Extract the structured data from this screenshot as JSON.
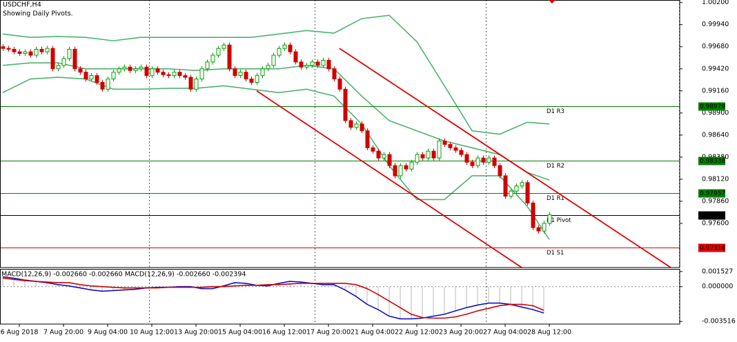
{
  "chart_data": {
    "type": "candlestick",
    "title": "USDCHF,H4",
    "subtitle": "Showing Daily Pivots.",
    "xlim": [
      -0.5,
      122.625
    ],
    "ylim": [
      0.9708,
      1.0023
    ],
    "yticks": [
      {
        "value": 1.002,
        "label": "1.00200"
      },
      {
        "value": 0.9994,
        "label": "0.99940"
      },
      {
        "value": 0.9968,
        "label": "0.99680"
      },
      {
        "value": 0.9942,
        "label": "0.99420"
      },
      {
        "value": 0.9916,
        "label": "0.99160"
      },
      {
        "value": 0.989,
        "label": "0.98900"
      },
      {
        "value": 0.9864,
        "label": "0.98640"
      },
      {
        "value": 0.9838,
        "label": "0.98380"
      },
      {
        "value": 0.9812,
        "label": "0.98120"
      },
      {
        "value": 0.9786,
        "label": "0.97860"
      },
      {
        "value": 0.976,
        "label": "0.97600"
      }
    ],
    "xticks": [
      {
        "value": 3,
        "label": "6 Aug 2018"
      },
      {
        "value": 11,
        "label": "7 Aug 20:00"
      },
      {
        "value": 19,
        "label": "9 Aug 04:00"
      },
      {
        "value": 27,
        "label": "10 Aug 12:00"
      },
      {
        "value": 35,
        "label": "13 Aug 20:00"
      },
      {
        "value": 43,
        "label": "15 Aug 04:00"
      },
      {
        "value": 51,
        "label": "16 Aug 12:00"
      },
      {
        "value": 59,
        "label": "17 Aug 20:00"
      },
      {
        "value": 67,
        "label": "21 Aug 04:00"
      },
      {
        "value": 75,
        "label": "22 Aug 12:00"
      },
      {
        "value": 83,
        "label": "23 Aug 20:00"
      },
      {
        "value": 91,
        "label": "27 Aug 04:00"
      },
      {
        "value": 99,
        "label": "28 Aug 12:00"
      }
    ],
    "xgrid": [
      26.5,
      56.5,
      87.5,
      122.5
    ],
    "up_color": "#00a000",
    "down_color": "#d00000",
    "open": [
      0.9968,
      0.9966,
      0.9965,
      0.9962,
      0.996,
      0.9962,
      0.9958,
      0.9965,
      0.9962,
      0.9966,
      0.9942,
      0.9946,
      0.9954,
      0.9965,
      0.9942,
      0.9938,
      0.993,
      0.9934,
      0.9926,
      0.9918,
      0.993,
      0.9938,
      0.9942,
      0.9944,
      0.994,
      0.9942,
      0.9944,
      0.9934,
      0.9942,
      0.9938,
      0.9935,
      0.9934,
      0.9938,
      0.9934,
      0.9932,
      0.9918,
      0.993,
      0.9942,
      0.995,
      0.9958,
      0.9966,
      0.997,
      0.9942,
      0.9934,
      0.9938,
      0.993,
      0.9926,
      0.9934,
      0.9942,
      0.9946,
      0.9958,
      0.9966,
      0.997,
      0.9962,
      0.995,
      0.9944,
      0.9946,
      0.995,
      0.9946,
      0.9952,
      0.9942,
      0.993,
      0.9918,
      0.9881,
      0.9873,
      0.9877,
      0.9869,
      0.9849,
      0.9845,
      0.9837,
      0.9841,
      0.9828,
      0.9816,
      0.9828,
      0.9824,
      0.9832,
      0.9841,
      0.9837,
      0.9845,
      0.9837,
      0.9857,
      0.9853,
      0.9849,
      0.9846,
      0.9841,
      0.9832,
      0.9828,
      0.9837,
      0.9832,
      0.9837,
      0.9828,
      0.9816,
      0.9792,
      0.9798,
      0.9804,
      0.9808,
      0.9784,
      0.9755,
      0.9751,
      0.976
    ],
    "high": [
      0.9971,
      0.9969,
      0.9968,
      0.9965,
      0.9965,
      0.9965,
      0.9968,
      0.9968,
      0.9969,
      0.9969,
      0.9949,
      0.9957,
      0.9968,
      0.9968,
      0.9945,
      0.9941,
      0.9937,
      0.9937,
      0.9929,
      0.9933,
      0.9941,
      0.9945,
      0.9947,
      0.9947,
      0.9945,
      0.9947,
      0.9947,
      0.9945,
      0.9945,
      0.9941,
      0.9938,
      0.9941,
      0.9941,
      0.9937,
      0.9935,
      0.9933,
      0.9945,
      0.9953,
      0.9961,
      0.9969,
      0.9973,
      0.9973,
      0.9945,
      0.9941,
      0.9941,
      0.9933,
      0.9937,
      0.9945,
      0.9949,
      0.9961,
      0.9969,
      0.9973,
      0.9973,
      0.9965,
      0.9953,
      0.9949,
      0.9953,
      0.9953,
      0.9955,
      0.9955,
      0.9945,
      0.9933,
      0.9921,
      0.9884,
      0.988,
      0.988,
      0.9872,
      0.9852,
      0.9848,
      0.9844,
      0.9844,
      0.9831,
      0.9831,
      0.9831,
      0.9835,
      0.9844,
      0.9844,
      0.9848,
      0.9848,
      0.986,
      0.986,
      0.9856,
      0.9852,
      0.9849,
      0.9844,
      0.9835,
      0.984,
      0.984,
      0.984,
      0.984,
      0.9831,
      0.9819,
      0.9801,
      0.9807,
      0.9811,
      0.9811,
      0.9787,
      0.9758,
      0.9763,
      0.9773
    ],
    "low": [
      0.9963,
      0.9962,
      0.9959,
      0.9957,
      0.9957,
      0.9955,
      0.9955,
      0.9959,
      0.9959,
      0.9939,
      0.9939,
      0.9943,
      0.9951,
      0.9939,
      0.9935,
      0.9927,
      0.9927,
      0.9923,
      0.9915,
      0.9915,
      0.9927,
      0.9935,
      0.9939,
      0.9937,
      0.9937,
      0.9939,
      0.9931,
      0.9931,
      0.9935,
      0.9932,
      0.9931,
      0.9931,
      0.9931,
      0.9929,
      0.9915,
      0.9915,
      0.9927,
      0.9939,
      0.9947,
      0.9955,
      0.9963,
      0.9939,
      0.9931,
      0.9931,
      0.9927,
      0.9923,
      0.9923,
      0.9931,
      0.9939,
      0.9943,
      0.9955,
      0.9963,
      0.9959,
      0.9947,
      0.9941,
      0.9941,
      0.9943,
      0.9943,
      0.9943,
      0.9939,
      0.9927,
      0.9915,
      0.9878,
      0.987,
      0.987,
      0.9866,
      0.9846,
      0.9842,
      0.9834,
      0.9834,
      0.9825,
      0.9813,
      0.9813,
      0.9821,
      0.9821,
      0.9829,
      0.9834,
      0.9834,
      0.9834,
      0.9834,
      0.985,
      0.9846,
      0.9843,
      0.9838,
      0.9829,
      0.9825,
      0.9825,
      0.9829,
      0.9829,
      0.9825,
      0.9813,
      0.9789,
      0.9789,
      0.9795,
      0.9801,
      0.9781,
      0.9752,
      0.9748,
      0.9748,
      0.9757
    ],
    "close": [
      0.9966,
      0.9965,
      0.9962,
      0.996,
      0.9962,
      0.9958,
      0.9965,
      0.9962,
      0.9966,
      0.9942,
      0.9946,
      0.9954,
      0.9965,
      0.9942,
      0.9938,
      0.993,
      0.9934,
      0.9926,
      0.9918,
      0.993,
      0.9938,
      0.9942,
      0.9944,
      0.994,
      0.9942,
      0.9944,
      0.9934,
      0.9942,
      0.9938,
      0.9935,
      0.9934,
      0.9938,
      0.9934,
      0.9932,
      0.9918,
      0.993,
      0.9942,
      0.995,
      0.9958,
      0.9966,
      0.997,
      0.9942,
      0.9934,
      0.9938,
      0.993,
      0.9926,
      0.9934,
      0.9942,
      0.9946,
      0.9958,
      0.9966,
      0.997,
      0.9962,
      0.995,
      0.9944,
      0.9946,
      0.995,
      0.9946,
      0.9952,
      0.9942,
      0.993,
      0.9918,
      0.9881,
      0.9873,
      0.9877,
      0.9869,
      0.9849,
      0.9845,
      0.9837,
      0.9841,
      0.9828,
      0.9816,
      0.9828,
      0.9824,
      0.9832,
      0.9841,
      0.9837,
      0.9845,
      0.9837,
      0.9857,
      0.9853,
      0.9849,
      0.9846,
      0.9841,
      0.9832,
      0.9828,
      0.9837,
      0.9832,
      0.9837,
      0.9828,
      0.9816,
      0.9792,
      0.9798,
      0.9804,
      0.9808,
      0.9784,
      0.9755,
      0.9751,
      0.976,
      0.977
    ],
    "bands": {
      "color": "#4db36f",
      "x": [
        0,
        5,
        10,
        15,
        20,
        25,
        30,
        35,
        40,
        45,
        50,
        55,
        60,
        65,
        70,
        75,
        80,
        85,
        90,
        95,
        99
      ],
      "upper": [
        0.9983,
        0.9979,
        0.998,
        0.9979,
        0.9975,
        0.9979,
        0.9979,
        0.9979,
        0.9979,
        0.9979,
        0.9983,
        0.9987,
        0.9984,
        1.0001,
        1.0005,
        0.9974,
        0.9922,
        0.9869,
        0.9865,
        0.9879,
        0.9877
      ],
      "middle": [
        0.9946,
        0.9949,
        0.9949,
        0.9942,
        0.9942,
        0.9942,
        0.9942,
        0.994,
        0.9942,
        0.9942,
        0.9942,
        0.9946,
        0.9942,
        0.991,
        0.9881,
        0.9869,
        0.9857,
        0.9849,
        0.9841,
        0.982,
        0.9811
      ],
      "lower": [
        0.9914,
        0.993,
        0.9932,
        0.993,
        0.9918,
        0.9918,
        0.9919,
        0.9919,
        0.9922,
        0.9918,
        0.9914,
        0.9918,
        0.991,
        0.9877,
        0.9828,
        0.9788,
        0.9788,
        0.9816,
        0.9816,
        0.978,
        0.9741
      ]
    },
    "channel": {
      "color": "#e00000",
      "lines": [
        {
          "x": [
            61,
            121
          ],
          "values": [
            0.9966,
            0.9708
          ]
        },
        {
          "x": [
            46,
            94
          ],
          "values": [
            0.9916,
            0.9708
          ]
        }
      ]
    },
    "pivots": [
      {
        "label": "D1 R3",
        "value": 0.98979,
        "color": "#008000"
      },
      {
        "label": "D1 R2",
        "value": 0.98338,
        "color": "#008000"
      },
      {
        "label": "D1 R1",
        "value": 0.97957,
        "color": "#008000"
      },
      {
        "label": "D1 Pivot",
        "value": 0.97697,
        "color": "#000000"
      },
      {
        "label": "D1 S1",
        "value": 0.97316,
        "color": "#e00000"
      }
    ],
    "macd": {
      "label": "MACD(12,26,9) -0.002660 -0.002660 MACD(12,26,9) -0.002660 -0.002394",
      "ylim": [
        -0.00378,
        0.00179
      ],
      "yticks": [
        0.001527,
        {
          "value": 0,
          "label": "0.000000"
        },
        -0.003516
      ],
      "main_color": "#1010c8",
      "signal_color": "#d00000",
      "histogram_color": "#b8b8b8",
      "x": [
        0,
        2,
        4,
        6,
        8,
        10,
        12,
        14,
        16,
        18,
        20,
        22,
        24,
        26,
        28,
        30,
        32,
        34,
        36,
        38,
        40,
        42,
        44,
        46,
        48,
        50,
        52,
        54,
        56,
        58,
        60,
        62,
        64,
        66,
        68,
        70,
        72,
        74,
        76,
        78,
        80,
        82,
        84,
        86,
        88,
        90,
        92,
        94,
        96,
        98
      ],
      "main": [
        0.00099,
        0.00086,
        0.00066,
        0.00053,
        0.0004,
        0.0002,
        7e-05,
        -0.00013,
        -0.00033,
        -0.00046,
        -0.0004,
        -0.00033,
        -0.00027,
        -0.00013,
        -7e-05,
        -7e-05,
        0,
        0,
        -0.0002,
        -0.0002,
        7e-05,
        0.0004,
        0.00033,
        0.00013,
        7e-05,
        0.00033,
        0.00053,
        0.00046,
        0.00033,
        0.0002,
        0.0002,
        -0.00033,
        -0.00099,
        -0.00179,
        -0.00232,
        -0.00298,
        -0.00325,
        -0.00325,
        -0.00318,
        -0.00298,
        -0.00279,
        -0.00245,
        -0.00212,
        -0.00186,
        -0.00166,
        -0.00166,
        -0.00179,
        -0.00206,
        -0.00232,
        -0.00266
      ],
      "signal": [
        0.00086,
        0.00073,
        0.0006,
        0.00053,
        0.00046,
        0.0004,
        0.0004,
        0.0002,
        7e-05,
        0,
        -7e-05,
        -0.00013,
        -0.00013,
        -0.00013,
        -0.00013,
        -7e-05,
        -7e-05,
        -7e-05,
        -7e-05,
        0,
        0,
        7e-05,
        0.00013,
        0.00013,
        0.0002,
        0.0002,
        0.00027,
        0.00033,
        0.00033,
        0.00033,
        0.00033,
        0.00033,
        0.0002,
        -0.0002,
        -0.0008,
        -0.00146,
        -0.00212,
        -0.00279,
        -0.00312,
        -0.00318,
        -0.00318,
        -0.00305,
        -0.00279,
        -0.00245,
        -0.00219,
        -0.00192,
        -0.00179,
        -0.00179,
        -0.00192,
        -0.00239
      ]
    }
  }
}
